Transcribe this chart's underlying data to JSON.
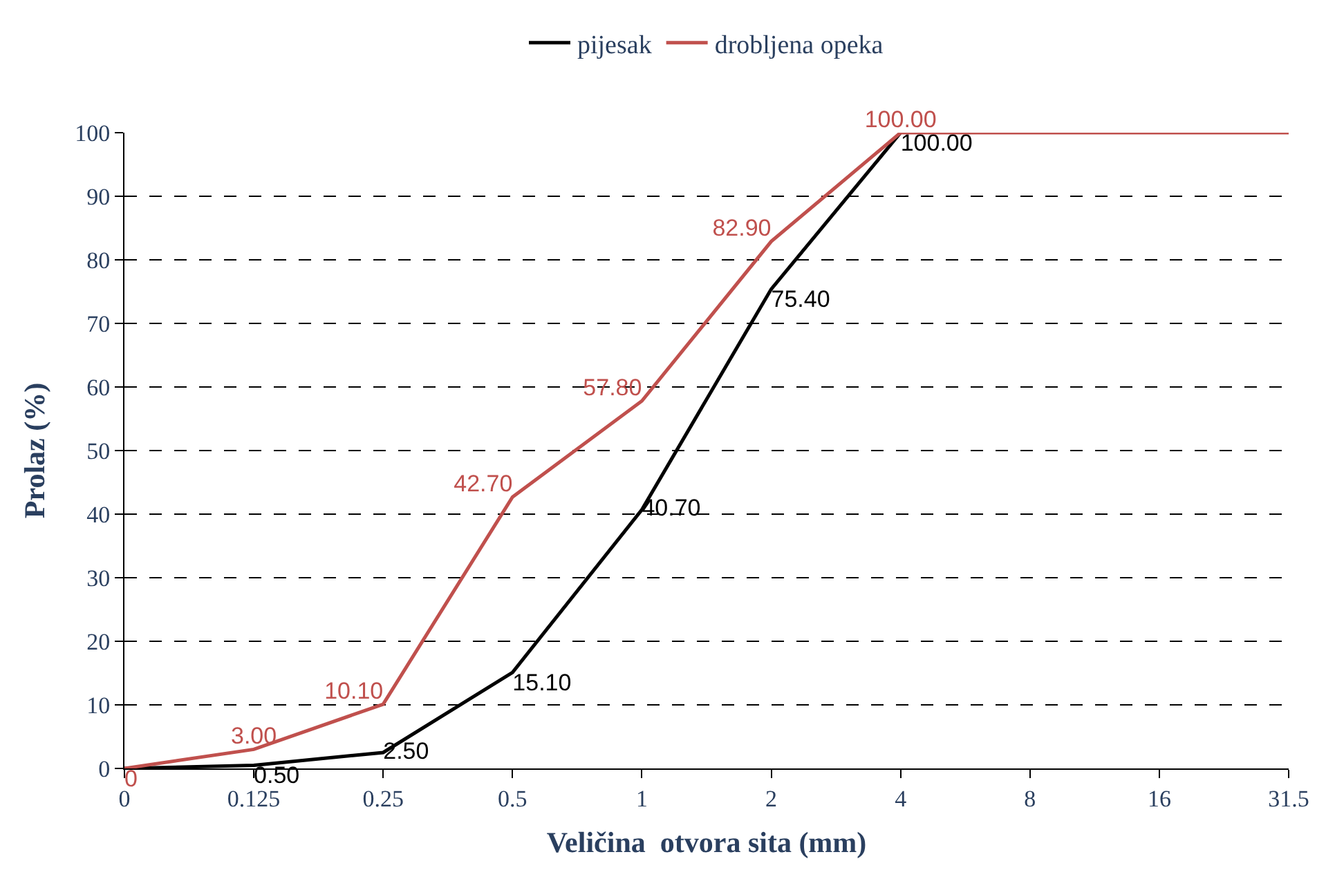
{
  "chart_data": {
    "type": "line",
    "xlabel": "Veličina  otvora sita (mm)",
    "ylabel": "Prolaz (%)",
    "categories": [
      "0",
      "0.125",
      "0.25",
      "0.5",
      "1",
      "2",
      "4",
      "8",
      "16",
      "31.5"
    ],
    "series": [
      {
        "name": "pijesak",
        "color": "#000000",
        "values": [
          0,
          0.5,
          2.5,
          15.1,
          40.7,
          75.4,
          100,
          null,
          null,
          null
        ],
        "value_labels": [
          null,
          "0.50",
          "2.50",
          "15.10",
          "40.70",
          "75.40",
          "100.00",
          null,
          null,
          null
        ]
      },
      {
        "name": "drobljena opeka",
        "color": "#c0504d",
        "values": [
          0,
          3.0,
          10.1,
          42.7,
          57.8,
          82.9,
          100,
          100,
          100,
          100
        ],
        "value_labels": [
          "0",
          "3.00",
          "10.10",
          "42.70",
          "57.80",
          "82.90",
          "100.00",
          null,
          null,
          null
        ]
      }
    ],
    "ylim": [
      0,
      100
    ],
    "yticks": [
      0,
      10,
      20,
      30,
      40,
      50,
      60,
      70,
      80,
      90,
      100
    ],
    "grid": "y",
    "legend": "top",
    "marker": "none",
    "line_style": "solid"
  }
}
